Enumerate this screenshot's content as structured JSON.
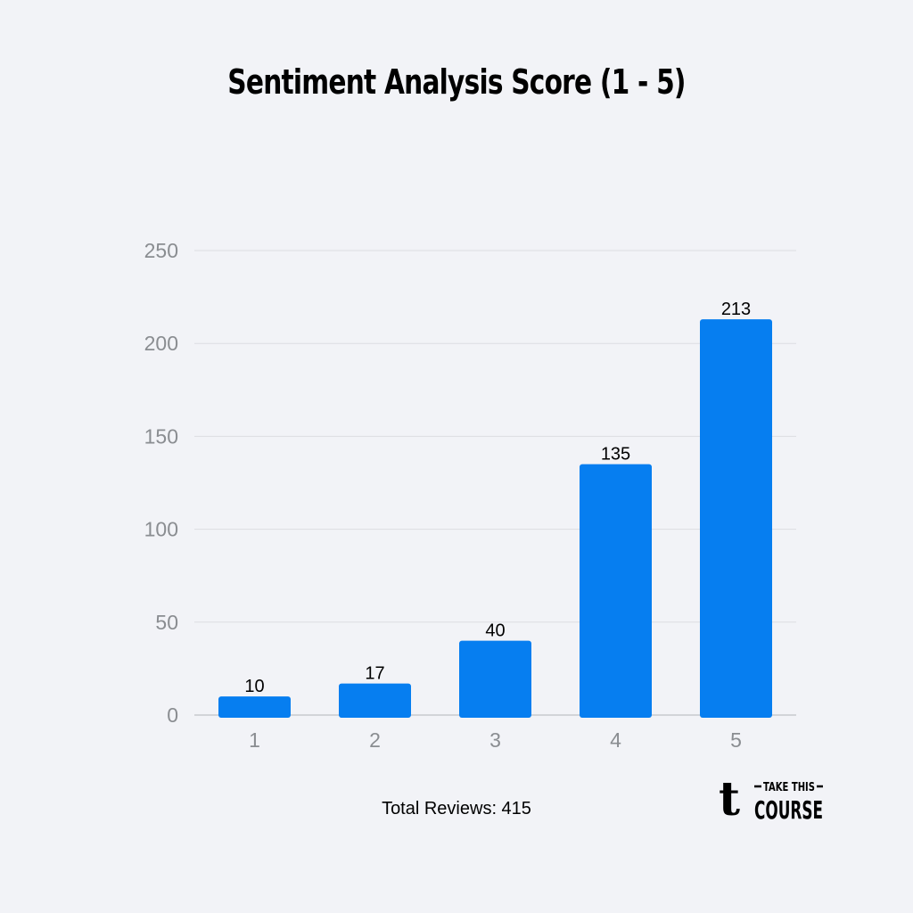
{
  "chart_data": {
    "type": "bar",
    "title": "Sentiment Analysis Score (1 - 5)",
    "categories": [
      "1",
      "2",
      "3",
      "4",
      "5"
    ],
    "values": [
      10,
      17,
      40,
      135,
      213
    ],
    "data_labels": [
      "10",
      "17",
      "40",
      "135",
      "213"
    ],
    "yticks": [
      "0",
      "50",
      "100",
      "150",
      "200",
      "250"
    ],
    "ylim": [
      0,
      250
    ],
    "grid": true,
    "bar_color": "#067ef0"
  },
  "footer": {
    "total_reviews": "Total Reviews: 415"
  },
  "logo": {
    "mark": "t",
    "line1": "TAKE THIS",
    "line2": "COURSE"
  }
}
